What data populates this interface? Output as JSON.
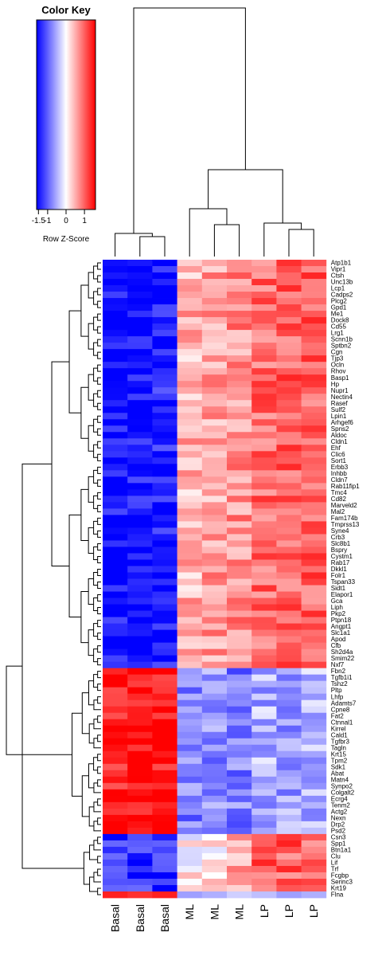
{
  "chart_data": {
    "type": "heatmap",
    "title": "",
    "columns": [
      "Basal",
      "Basal",
      "Basal",
      "ML",
      "ML",
      "ML",
      "LP",
      "LP",
      "LP"
    ],
    "rows": [
      "Atp1b1",
      "Vipr1",
      "Ctsh",
      "Unc13b",
      "Lcp1",
      "Cadps2",
      "Plcg2",
      "Gpd1",
      "Me1",
      "Dock8",
      "Cd55",
      "Lrg1",
      "Scnn1b",
      "Sptbn2",
      "Cgn",
      "Tjp3",
      "Ocln",
      "Rhov",
      "Basp1",
      "Hp",
      "Nupr1",
      "Nectin4",
      "Rasef",
      "Sulf2",
      "Lpin1",
      "Arhgef6",
      "Spns2",
      "Aldoc",
      "Cldn1",
      "Ehf",
      "Clic6",
      "Sort1",
      "Erbb3",
      "Inhbb",
      "Cldn7",
      "Rab11fip1",
      "Tmc4",
      "Cd82",
      "Marveld2",
      "Mal2",
      "Fam174b",
      "Tmprss13",
      "Syne4",
      "Crb3",
      "Slc8b1",
      "Bspry",
      "Cystm1",
      "Rab17",
      "Dkkl1",
      "Folr1",
      "Tspan33",
      "Sidt1",
      "Elapor1",
      "Gca",
      "Liph",
      "Pkp2",
      "Ptpn18",
      "Angpt1",
      "Slc1a1",
      "Apod",
      "Cfb",
      "Sh2d4a",
      "Smim22",
      "Nxf7",
      "Fbn2",
      "Tgfb1i1",
      "Tshz2",
      "Pltp",
      "Lhfp",
      "Adamts7",
      "Cpne8",
      "Fat2",
      "Ctnnal1",
      "Kirrel",
      "Cald1",
      "Tgfbr3",
      "Tagln",
      "Krt15",
      "Tpm2",
      "Sdk1",
      "Abat",
      "Matn4",
      "Synpo2",
      "Colgalt2",
      "Ecrg4",
      "Tenm2",
      "Actg2",
      "Nexn",
      "Drp2",
      "Psd2",
      "Csn3",
      "Spp1",
      "Btn1a1",
      "Clu",
      "Lif",
      "Trf",
      "Fcgbp",
      "Serinc3",
      "Krt19",
      "Flna"
    ],
    "groups": [
      {
        "rows": 64,
        "values": [
          -1.5,
          -1.5,
          -1.4,
          0.5,
          0.6,
          0.7,
          0.9,
          1.0,
          1.0
        ]
      },
      {
        "rows": 26,
        "values": [
          1.45,
          1.5,
          1.5,
          -0.8,
          -0.7,
          -0.8,
          -0.5,
          -0.6,
          -0.5
        ]
      },
      {
        "rows": 10,
        "values": [
          -1.3,
          -1.3,
          -1.3,
          0.1,
          0.2,
          0.5,
          1.0,
          1.0,
          1.0
        ]
      }
    ],
    "color_key": {
      "title": "Color Key",
      "xlabel": "Row Z-Score",
      "ticks": [
        "-1.5",
        "-1",
        "0",
        "1"
      ],
      "tick_values": [
        -1.5,
        -1,
        0,
        1
      ],
      "range": [
        -1.6,
        1.6
      ],
      "low_color": "#0000ff",
      "mid_color": "#ffffff",
      "high_color": "#ff0000"
    }
  }
}
